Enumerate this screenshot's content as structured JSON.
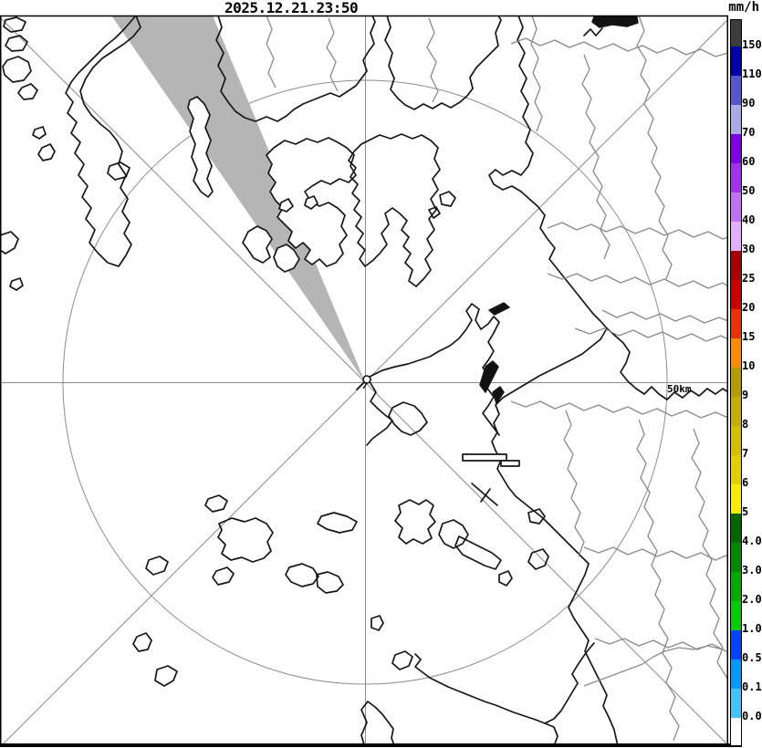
{
  "header": {
    "timestamp": "2025.12.21.23:50",
    "unit_label": "mm/h"
  },
  "map": {
    "range_ring_label": "50km"
  },
  "colors": {
    "beam_sector": "#B5B5B5",
    "grid": "#8C8C8C",
    "coastline": "#161616",
    "admin_boundary": "#8A8A8A"
  },
  "legend": {
    "entries": [
      {
        "color": "#3C3C3C",
        "label": "150"
      },
      {
        "color": "#0000AA",
        "label": "110"
      },
      {
        "color": "#5555CC",
        "label": "90"
      },
      {
        "color": "#AAAAE6",
        "label": "70"
      },
      {
        "color": "#7F00E6",
        "label": "60"
      },
      {
        "color": "#A032F0",
        "label": "50"
      },
      {
        "color": "#C072F5",
        "label": "40"
      },
      {
        "color": "#E0B0FA",
        "label": "30"
      },
      {
        "color": "#A80000",
        "label": "25"
      },
      {
        "color": "#C80000",
        "label": "20"
      },
      {
        "color": "#E83200",
        "label": "15"
      },
      {
        "color": "#FF8C00",
        "label": "10"
      },
      {
        "color": "#B49B00",
        "label": "9"
      },
      {
        "color": "#C4AC00",
        "label": "8"
      },
      {
        "color": "#D4BE00",
        "label": "7"
      },
      {
        "color": "#E4D000",
        "label": "6"
      },
      {
        "color": "#F8EC00",
        "label": "5"
      },
      {
        "color": "#006600",
        "label": "4.0"
      },
      {
        "color": "#008800",
        "label": "3.0"
      },
      {
        "color": "#00AA00",
        "label": "2.0"
      },
      {
        "color": "#00CC00",
        "label": "1.0"
      },
      {
        "color": "#0044FF",
        "label": "0.5"
      },
      {
        "color": "#0099FF",
        "label": "0.1"
      },
      {
        "color": "#44C4FF",
        "label": "0.0"
      },
      {
        "color": "#FFFFFF",
        "label": ""
      }
    ]
  }
}
